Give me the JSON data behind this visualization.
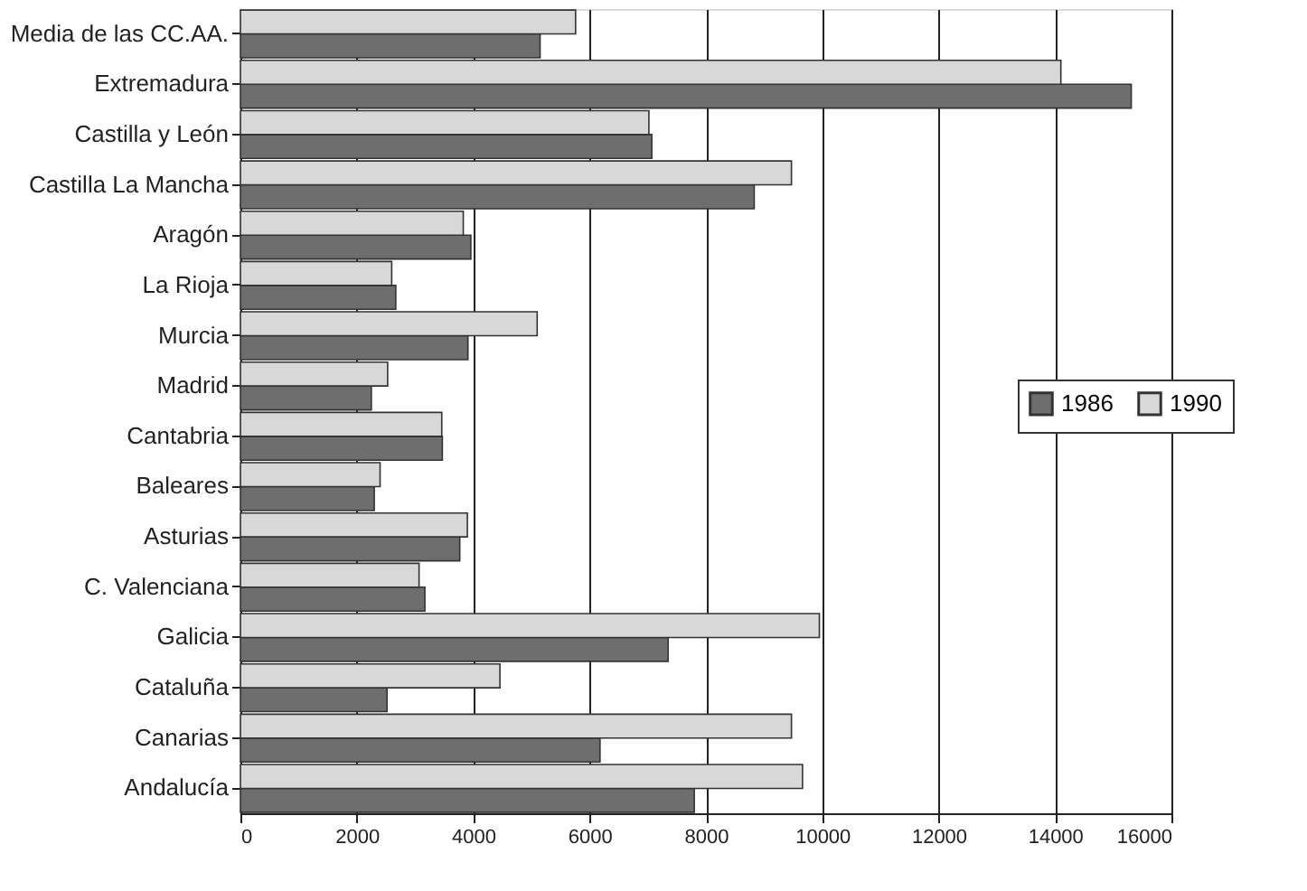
{
  "chart_data": {
    "type": "bar",
    "orientation": "horizontal",
    "categories": [
      "Media de las CC.AA.",
      "Extremadura",
      "Castilla y León",
      "Castilla La Mancha",
      "Aragón",
      "La Rioja",
      "Murcia",
      "Madrid",
      "Cantabria",
      "Baleares",
      "Asturias",
      "C. Valenciana",
      "Galicia",
      "Cataluña",
      "Canarias",
      "Andalucía"
    ],
    "series": [
      {
        "name": "1986",
        "color": "#6e6e6e",
        "values": [
          5150,
          15310,
          7070,
          8830,
          3960,
          2670,
          3910,
          2250,
          3470,
          2300,
          3770,
          3170,
          7350,
          2520,
          6180,
          7800
        ]
      },
      {
        "name": "1990",
        "color": "#d8d8d8",
        "values": [
          5760,
          14100,
          7020,
          9470,
          3830,
          2600,
          5100,
          2530,
          3460,
          2400,
          3900,
          3070,
          9950,
          4460,
          9470,
          9660
        ]
      }
    ],
    "xlim": [
      0,
      16000
    ],
    "xticks": [
      0,
      2000,
      4000,
      6000,
      8000,
      10000,
      12000,
      14000,
      16000
    ],
    "grid": "x",
    "legend": "right"
  }
}
